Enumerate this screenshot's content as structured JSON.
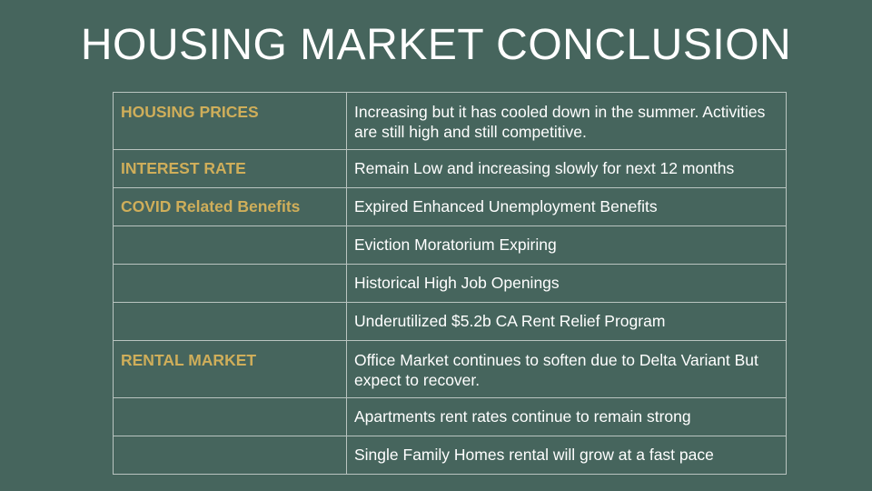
{
  "slide": {
    "title": "HOUSING MARKET CONCLUSION"
  },
  "table": {
    "rows": [
      {
        "label": "HOUSING PRICES",
        "value": "Increasing but it has cooled down in the summer. Activities are still high and still competitive."
      },
      {
        "label": "INTEREST RATE",
        "value": "Remain Low and increasing slowly for next 12 months"
      },
      {
        "label": "COVID Related Benefits",
        "value": "Expired Enhanced Unemployment Benefits"
      },
      {
        "label": "",
        "value": "Eviction Moratorium Expiring"
      },
      {
        "label": "",
        "value": "Historical High Job Openings"
      },
      {
        "label": "",
        "value": "Underutilized $5.2b CA Rent Relief Program"
      },
      {
        "label": "RENTAL MARKET",
        "value": "Office Market continues to soften due to Delta Variant But expect to recover."
      },
      {
        "label": "",
        "value": "Apartments rent rates continue to remain strong"
      },
      {
        "label": "",
        "value": "Single Family Homes rental will grow at a fast pace"
      }
    ]
  },
  "colors": {
    "background": "#46655d",
    "label": "#cfae5a",
    "text": "#ffffff",
    "grid": "#b9c4c0"
  }
}
